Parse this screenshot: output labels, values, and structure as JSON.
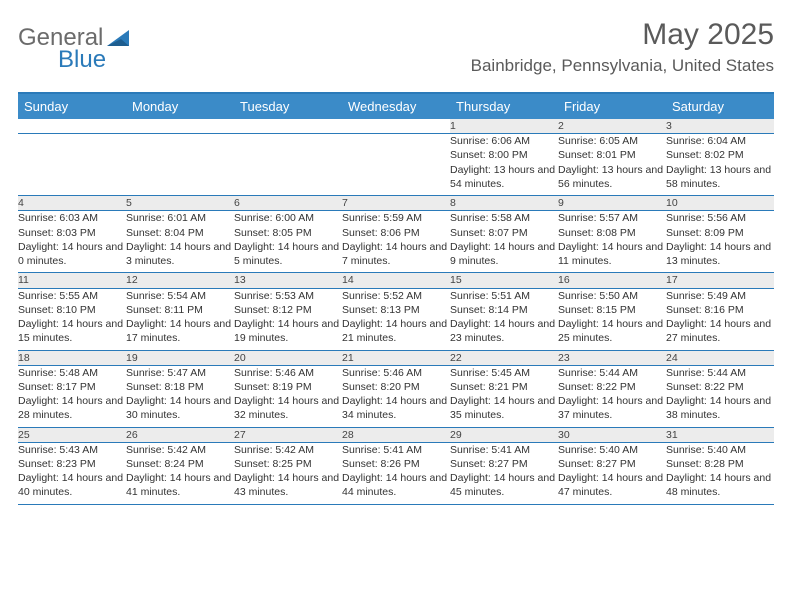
{
  "logo": {
    "text1": "General",
    "text2": "Blue"
  },
  "title": "May 2025",
  "location": "Bainbridge, Pennsylvania, United States",
  "colors": {
    "header_bg": "#3b8bc8",
    "accent": "#2a7ab9",
    "daynum_bg": "#ececec",
    "text": "#333333",
    "title_text": "#5a5a5a"
  },
  "dayHeaders": [
    "Sunday",
    "Monday",
    "Tuesday",
    "Wednesday",
    "Thursday",
    "Friday",
    "Saturday"
  ],
  "weeks": [
    [
      null,
      null,
      null,
      null,
      {
        "n": "1",
        "sr": "6:06 AM",
        "ss": "8:00 PM",
        "dl": "13 hours and 54 minutes."
      },
      {
        "n": "2",
        "sr": "6:05 AM",
        "ss": "8:01 PM",
        "dl": "13 hours and 56 minutes."
      },
      {
        "n": "3",
        "sr": "6:04 AM",
        "ss": "8:02 PM",
        "dl": "13 hours and 58 minutes."
      }
    ],
    [
      {
        "n": "4",
        "sr": "6:03 AM",
        "ss": "8:03 PM",
        "dl": "14 hours and 0 minutes."
      },
      {
        "n": "5",
        "sr": "6:01 AM",
        "ss": "8:04 PM",
        "dl": "14 hours and 3 minutes."
      },
      {
        "n": "6",
        "sr": "6:00 AM",
        "ss": "8:05 PM",
        "dl": "14 hours and 5 minutes."
      },
      {
        "n": "7",
        "sr": "5:59 AM",
        "ss": "8:06 PM",
        "dl": "14 hours and 7 minutes."
      },
      {
        "n": "8",
        "sr": "5:58 AM",
        "ss": "8:07 PM",
        "dl": "14 hours and 9 minutes."
      },
      {
        "n": "9",
        "sr": "5:57 AM",
        "ss": "8:08 PM",
        "dl": "14 hours and 11 minutes."
      },
      {
        "n": "10",
        "sr": "5:56 AM",
        "ss": "8:09 PM",
        "dl": "14 hours and 13 minutes."
      }
    ],
    [
      {
        "n": "11",
        "sr": "5:55 AM",
        "ss": "8:10 PM",
        "dl": "14 hours and 15 minutes."
      },
      {
        "n": "12",
        "sr": "5:54 AM",
        "ss": "8:11 PM",
        "dl": "14 hours and 17 minutes."
      },
      {
        "n": "13",
        "sr": "5:53 AM",
        "ss": "8:12 PM",
        "dl": "14 hours and 19 minutes."
      },
      {
        "n": "14",
        "sr": "5:52 AM",
        "ss": "8:13 PM",
        "dl": "14 hours and 21 minutes."
      },
      {
        "n": "15",
        "sr": "5:51 AM",
        "ss": "8:14 PM",
        "dl": "14 hours and 23 minutes."
      },
      {
        "n": "16",
        "sr": "5:50 AM",
        "ss": "8:15 PM",
        "dl": "14 hours and 25 minutes."
      },
      {
        "n": "17",
        "sr": "5:49 AM",
        "ss": "8:16 PM",
        "dl": "14 hours and 27 minutes."
      }
    ],
    [
      {
        "n": "18",
        "sr": "5:48 AM",
        "ss": "8:17 PM",
        "dl": "14 hours and 28 minutes."
      },
      {
        "n": "19",
        "sr": "5:47 AM",
        "ss": "8:18 PM",
        "dl": "14 hours and 30 minutes."
      },
      {
        "n": "20",
        "sr": "5:46 AM",
        "ss": "8:19 PM",
        "dl": "14 hours and 32 minutes."
      },
      {
        "n": "21",
        "sr": "5:46 AM",
        "ss": "8:20 PM",
        "dl": "14 hours and 34 minutes."
      },
      {
        "n": "22",
        "sr": "5:45 AM",
        "ss": "8:21 PM",
        "dl": "14 hours and 35 minutes."
      },
      {
        "n": "23",
        "sr": "5:44 AM",
        "ss": "8:22 PM",
        "dl": "14 hours and 37 minutes."
      },
      {
        "n": "24",
        "sr": "5:44 AM",
        "ss": "8:22 PM",
        "dl": "14 hours and 38 minutes."
      }
    ],
    [
      {
        "n": "25",
        "sr": "5:43 AM",
        "ss": "8:23 PM",
        "dl": "14 hours and 40 minutes."
      },
      {
        "n": "26",
        "sr": "5:42 AM",
        "ss": "8:24 PM",
        "dl": "14 hours and 41 minutes."
      },
      {
        "n": "27",
        "sr": "5:42 AM",
        "ss": "8:25 PM",
        "dl": "14 hours and 43 minutes."
      },
      {
        "n": "28",
        "sr": "5:41 AM",
        "ss": "8:26 PM",
        "dl": "14 hours and 44 minutes."
      },
      {
        "n": "29",
        "sr": "5:41 AM",
        "ss": "8:27 PM",
        "dl": "14 hours and 45 minutes."
      },
      {
        "n": "30",
        "sr": "5:40 AM",
        "ss": "8:27 PM",
        "dl": "14 hours and 47 minutes."
      },
      {
        "n": "31",
        "sr": "5:40 AM",
        "ss": "8:28 PM",
        "dl": "14 hours and 48 minutes."
      }
    ]
  ],
  "labels": {
    "sunrise": "Sunrise: ",
    "sunset": "Sunset: ",
    "daylight": "Daylight: "
  }
}
